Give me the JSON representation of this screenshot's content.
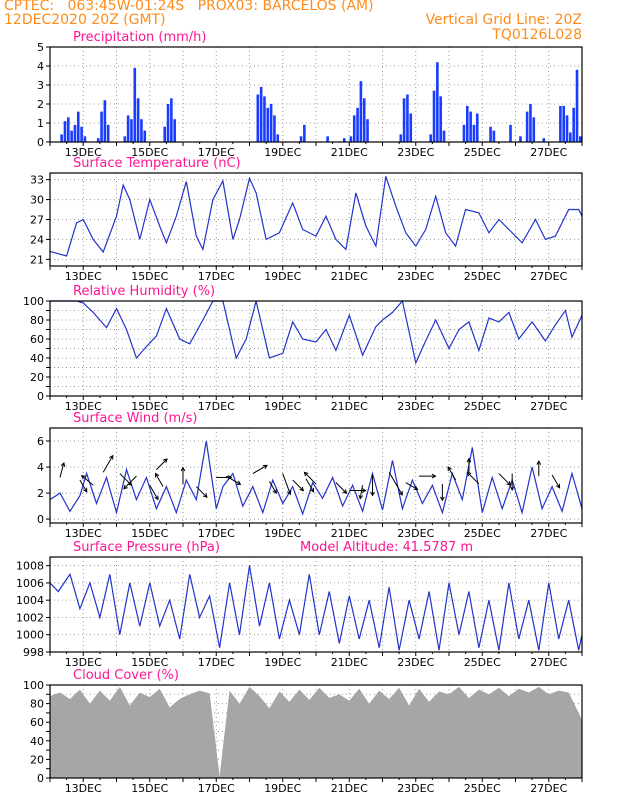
{
  "header": {
    "line1_left": "CPTEC:   063:45W-01:24S   PROX03: BARCELOS (AM)",
    "line2_left": "12DEC2020 20Z (GMT)",
    "line2_right": "Vertical Grid Line: 20Z",
    "line3_right": "TQ0126L028"
  },
  "colors": {
    "header": "#ff8c1a",
    "panel_title": "#ff1493",
    "series_line": "#2233cc",
    "precip_bar": "#1a3cff",
    "cloud_fill": "#a6a6a6",
    "axis": "#000000",
    "grid": "#9a9a9a"
  },
  "chart_data": [
    {
      "type": "bar",
      "title": "Precipitation (mm/h)",
      "x_tick_labels": [
        "13DEC",
        "15DEC",
        "17DEC",
        "19DEC",
        "21DEC",
        "23DEC",
        "25DEC",
        "27DEC"
      ],
      "ylim": [
        0,
        5
      ],
      "y_ticks": [
        0,
        1,
        2,
        3,
        4,
        5
      ],
      "grid": true,
      "bars": [
        [
          0.35,
          0.4
        ],
        [
          0.45,
          1.1
        ],
        [
          0.55,
          1.3
        ],
        [
          0.65,
          0.6
        ],
        [
          0.75,
          0.9
        ],
        [
          0.85,
          1.6
        ],
        [
          0.95,
          0.8
        ],
        [
          1.05,
          0.3
        ],
        [
          1.45,
          0.2
        ],
        [
          1.55,
          1.6
        ],
        [
          1.65,
          2.2
        ],
        [
          1.75,
          0.9
        ],
        [
          2.25,
          0.3
        ],
        [
          2.35,
          1.4
        ],
        [
          2.45,
          1.2
        ],
        [
          2.55,
          3.9
        ],
        [
          2.65,
          2.3
        ],
        [
          2.75,
          1.2
        ],
        [
          2.85,
          0.6
        ],
        [
          3.45,
          0.8
        ],
        [
          3.55,
          2.0
        ],
        [
          3.65,
          2.3
        ],
        [
          3.75,
          1.2
        ],
        [
          6.25,
          2.5
        ],
        [
          6.35,
          2.9
        ],
        [
          6.45,
          2.4
        ],
        [
          6.55,
          1.8
        ],
        [
          6.65,
          2.0
        ],
        [
          6.75,
          1.4
        ],
        [
          6.85,
          0.4
        ],
        [
          7.55,
          0.3
        ],
        [
          7.65,
          0.9
        ],
        [
          8.35,
          0.3
        ],
        [
          8.85,
          0.2
        ],
        [
          9.05,
          0.3
        ],
        [
          9.15,
          1.4
        ],
        [
          9.25,
          1.8
        ],
        [
          9.35,
          3.2
        ],
        [
          9.45,
          2.3
        ],
        [
          9.55,
          1.2
        ],
        [
          10.55,
          0.4
        ],
        [
          10.65,
          2.3
        ],
        [
          10.75,
          2.5
        ],
        [
          10.85,
          1.5
        ],
        [
          11.45,
          0.4
        ],
        [
          11.55,
          2.7
        ],
        [
          11.65,
          4.2
        ],
        [
          11.75,
          2.4
        ],
        [
          11.85,
          0.6
        ],
        [
          12.45,
          0.9
        ],
        [
          12.55,
          1.9
        ],
        [
          12.65,
          1.6
        ],
        [
          12.75,
          0.9
        ],
        [
          12.85,
          1.5
        ],
        [
          13.25,
          0.8
        ],
        [
          13.35,
          0.6
        ],
        [
          13.85,
          0.9
        ],
        [
          14.15,
          0.3
        ],
        [
          14.35,
          1.6
        ],
        [
          14.45,
          2.0
        ],
        [
          14.55,
          1.3
        ],
        [
          14.85,
          0.2
        ],
        [
          15.35,
          1.9
        ],
        [
          15.45,
          1.9
        ],
        [
          15.55,
          1.4
        ],
        [
          15.65,
          0.5
        ],
        [
          15.75,
          1.8
        ],
        [
          15.85,
          3.8
        ],
        [
          15.95,
          0.3
        ]
      ]
    },
    {
      "type": "line",
      "title": "Surface Temperature (nC)",
      "x_tick_labels": [
        "13DEC",
        "15DEC",
        "17DEC",
        "19DEC",
        "21DEC",
        "23DEC",
        "25DEC",
        "27DEC"
      ],
      "ylim": [
        20,
        34
      ],
      "y_ticks": [
        21,
        24,
        27,
        30,
        33
      ],
      "grid": true,
      "x": [
        0,
        0.5,
        0.8,
        1.0,
        1.3,
        1.6,
        2.0,
        2.2,
        2.4,
        2.7,
        3.0,
        3.3,
        3.5,
        3.8,
        4.1,
        4.4,
        4.6,
        4.9,
        5.2,
        5.5,
        5.7,
        6.0,
        6.2,
        6.5,
        6.9,
        7.3,
        7.6,
        8.0,
        8.3,
        8.6,
        8.9,
        9.2,
        9.5,
        9.8,
        10.1,
        10.4,
        10.7,
        11.0,
        11.3,
        11.6,
        11.9,
        12.2,
        12.5,
        12.9,
        13.2,
        13.5,
        13.8,
        14.2,
        14.6,
        14.9,
        15.2,
        15.6,
        15.9,
        16.0
      ],
      "y": [
        22.2,
        21.5,
        26.5,
        27.0,
        24.0,
        22.1,
        27.5,
        32.2,
        30.0,
        24.0,
        30.0,
        26.0,
        23.5,
        27.5,
        32.7,
        24.5,
        22.5,
        30.0,
        32.8,
        24.0,
        27.0,
        33.2,
        31.0,
        24.0,
        25.0,
        29.5,
        25.5,
        24.5,
        27.5,
        24.0,
        22.5,
        31.0,
        26.0,
        23.0,
        33.5,
        29.0,
        25.0,
        23.0,
        25.5,
        30.5,
        25.0,
        23.0,
        28.5,
        28.0,
        25.0,
        27.0,
        25.5,
        23.5,
        27.0,
        24.0,
        24.5,
        28.5,
        28.5,
        27.5
      ]
    },
    {
      "type": "line",
      "title": "Relative Humidity (%)",
      "x_tick_labels": [
        "13DEC",
        "15DEC",
        "17DEC",
        "19DEC",
        "21DEC",
        "23DEC",
        "25DEC",
        "27DEC"
      ],
      "ylim": [
        0,
        100
      ],
      "y_ticks": [
        0,
        10,
        20,
        30,
        40,
        50,
        60,
        70,
        80,
        90,
        100
      ],
      "y_tick_labels": [
        "0",
        "20",
        "40",
        "60",
        "80",
        "100"
      ],
      "grid": true,
      "x": [
        0,
        0.5,
        0.8,
        1.0,
        1.3,
        1.7,
        2.0,
        2.3,
        2.6,
        2.9,
        3.2,
        3.5,
        3.9,
        4.2,
        4.6,
        4.9,
        5.2,
        5.6,
        5.9,
        6.2,
        6.6,
        7.0,
        7.3,
        7.6,
        8.0,
        8.3,
        8.6,
        9.0,
        9.4,
        9.8,
        10.0,
        10.3,
        10.6,
        11.0,
        11.3,
        11.6,
        12.0,
        12.3,
        12.6,
        12.9,
        13.2,
        13.5,
        13.8,
        14.1,
        14.5,
        14.9,
        15.2,
        15.5,
        15.7,
        16.0
      ],
      "y": [
        100,
        100,
        100,
        98,
        88,
        72,
        92,
        70,
        40,
        52,
        63,
        92,
        60,
        55,
        80,
        100,
        100,
        40,
        60,
        100,
        40,
        45,
        78,
        60,
        57,
        70,
        48,
        85,
        43,
        73,
        80,
        88,
        100,
        35,
        58,
        80,
        50,
        70,
        78,
        48,
        82,
        78,
        88,
        60,
        78,
        58,
        75,
        90,
        62,
        85
      ]
    },
    {
      "type": "line",
      "title": "Surface Wind (m/s)",
      "x_tick_labels": [
        "13DEC",
        "15DEC",
        "17DEC",
        "19DEC",
        "21DEC",
        "23DEC",
        "25DEC",
        "27DEC"
      ],
      "ylim": [
        -0.3,
        7
      ],
      "y_ticks": [
        0,
        2,
        4,
        6
      ],
      "grid": true,
      "x": [
        0,
        0.3,
        0.6,
        0.9,
        1.1,
        1.4,
        1.7,
        2.0,
        2.3,
        2.6,
        2.9,
        3.2,
        3.5,
        3.8,
        4.1,
        4.4,
        4.7,
        5.0,
        5.2,
        5.5,
        5.8,
        6.1,
        6.4,
        6.7,
        7.0,
        7.3,
        7.6,
        7.9,
        8.2,
        8.5,
        8.8,
        9.1,
        9.4,
        9.7,
        10.0,
        10.3,
        10.6,
        10.9,
        11.2,
        11.5,
        11.8,
        12.1,
        12.4,
        12.7,
        13.0,
        13.3,
        13.6,
        13.9,
        14.2,
        14.5,
        14.8,
        15.1,
        15.4,
        15.7,
        16.0
      ],
      "y": [
        1.5,
        2.0,
        0.6,
        1.8,
        3.5,
        1.2,
        3.2,
        0.5,
        3.8,
        1.5,
        3.2,
        0.8,
        2.5,
        0.5,
        3.0,
        1.5,
        6.0,
        0.8,
        2.5,
        3.5,
        1.0,
        2.5,
        0.5,
        3.0,
        1.2,
        2.5,
        0.4,
        2.8,
        1.6,
        3.2,
        1.0,
        2.6,
        0.6,
        3.5,
        0.7,
        4.5,
        0.8,
        3.0,
        1.2,
        2.6,
        0.5,
        3.5,
        1.5,
        5.5,
        0.5,
        3.2,
        0.8,
        3.0,
        0.5,
        4.0,
        0.8,
        2.5,
        0.6,
        3.5,
        0.8
      ],
      "arrows": [
        [
          0.3,
          3.2,
          75,
          0.5
        ],
        [
          0.9,
          3.0,
          -60,
          0.4
        ],
        [
          1.3,
          2.6,
          140,
          0.5
        ],
        [
          1.6,
          3.6,
          60,
          0.8
        ],
        [
          2.1,
          3.5,
          -45,
          0.6
        ],
        [
          2.6,
          3.3,
          -135,
          0.7
        ],
        [
          3.0,
          2.6,
          -60,
          0.6
        ],
        [
          3.2,
          3.8,
          45,
          0.5
        ],
        [
          3.4,
          2.5,
          120,
          0.5
        ],
        [
          4.0,
          2.7,
          90,
          0.6
        ],
        [
          4.4,
          2.5,
          -45,
          0.5
        ],
        [
          5.0,
          3.2,
          0,
          0.5
        ],
        [
          5.3,
          3.3,
          -30,
          0.6
        ],
        [
          6.1,
          3.5,
          30,
          0.6
        ],
        [
          6.6,
          2.9,
          -60,
          0.4
        ],
        [
          7.0,
          3.5,
          -70,
          1.0
        ],
        [
          7.3,
          3.0,
          -45,
          0.5
        ],
        [
          7.7,
          3.1,
          -60,
          0.5
        ],
        [
          8.0,
          2.7,
          135,
          0.6
        ],
        [
          8.6,
          2.8,
          -45,
          0.5
        ],
        [
          9.0,
          2.2,
          0,
          0.6
        ],
        [
          9.4,
          2.6,
          -100,
          0.4
        ],
        [
          9.7,
          3.4,
          -90,
          0.9
        ],
        [
          10.2,
          3.6,
          -60,
          1.3
        ],
        [
          10.7,
          2.8,
          -30,
          0.4
        ],
        [
          11.1,
          3.3,
          0,
          0.6
        ],
        [
          11.8,
          2.7,
          -90,
          0.6
        ],
        [
          12.2,
          3.0,
          120,
          0.5
        ],
        [
          12.6,
          3.6,
          90,
          0.4
        ],
        [
          12.9,
          2.7,
          135,
          0.6
        ],
        [
          13.5,
          3.5,
          -45,
          0.6
        ],
        [
          13.9,
          3.5,
          -90,
          0.6
        ],
        [
          14.7,
          3.3,
          90,
          0.5
        ],
        [
          15.1,
          3.4,
          -60,
          0.5
        ]
      ]
    },
    {
      "type": "line",
      "title": "Surface Pressure (hPa)",
      "annotation": "Model Altitude: 41.5787 m",
      "x_tick_labels": [
        "13DEC",
        "15DEC",
        "17DEC",
        "19DEC",
        "21DEC",
        "23DEC",
        "25DEC",
        "27DEC"
      ],
      "ylim": [
        998,
        1009
      ],
      "y_ticks": [
        998,
        1000,
        1002,
        1004,
        1006,
        1008
      ],
      "grid": true,
      "x": [
        0,
        0.25,
        0.6,
        0.9,
        1.2,
        1.5,
        1.8,
        2.1,
        2.4,
        2.7,
        3.0,
        3.3,
        3.6,
        3.9,
        4.2,
        4.5,
        4.8,
        5.1,
        5.4,
        5.7,
        6.0,
        6.3,
        6.6,
        6.9,
        7.2,
        7.5,
        7.8,
        8.1,
        8.4,
        8.7,
        9.0,
        9.3,
        9.6,
        9.9,
        10.2,
        10.5,
        10.8,
        11.1,
        11.4,
        11.7,
        12.0,
        12.3,
        12.6,
        12.9,
        13.2,
        13.5,
        13.8,
        14.1,
        14.4,
        14.7,
        15.0,
        15.3,
        15.6,
        15.9,
        16.0
      ],
      "y": [
        1006,
        1005,
        1007,
        1003,
        1006,
        1002,
        1007,
        1000,
        1006,
        1001,
        1006,
        1001,
        1004,
        999.5,
        1007,
        1002,
        1004.5,
        998.5,
        1006,
        1000,
        1008,
        1001,
        1006,
        999.5,
        1004,
        1000,
        1007,
        1000,
        1005,
        999,
        1004.5,
        999.5,
        1004,
        998.5,
        1005.5,
        998.2,
        1004,
        999.5,
        1005,
        998.2,
        1006,
        1000,
        1005,
        998.5,
        1004,
        998.2,
        1006,
        999.5,
        1004,
        998.2,
        1006,
        999.5,
        1004,
        998.2,
        1000
      ]
    },
    {
      "type": "area",
      "title": "Cloud Cover (%)",
      "x_tick_labels": [
        "13DEC",
        "15DEC",
        "17DEC",
        "19DEC",
        "21DEC",
        "23DEC",
        "25DEC",
        "27DEC"
      ],
      "ylim": [
        0,
        100
      ],
      "y_ticks": [
        0,
        10,
        20,
        30,
        40,
        50,
        60,
        70,
        80,
        90,
        100
      ],
      "y_tick_labels": [
        "0",
        "20",
        "40",
        "60",
        "80",
        "100"
      ],
      "grid": true,
      "x": [
        0,
        0.3,
        0.6,
        0.9,
        1.2,
        1.5,
        1.8,
        2.1,
        2.4,
        2.7,
        3.0,
        3.3,
        3.6,
        3.9,
        4.2,
        4.5,
        4.8,
        5.1,
        5.4,
        5.7,
        6.0,
        6.3,
        6.6,
        6.9,
        7.2,
        7.5,
        7.8,
        8.1,
        8.4,
        8.7,
        9.0,
        9.3,
        9.6,
        9.9,
        10.2,
        10.5,
        10.8,
        11.1,
        11.4,
        11.7,
        12.0,
        12.3,
        12.6,
        12.9,
        13.2,
        13.5,
        13.8,
        14.1,
        14.4,
        14.7,
        15.0,
        15.3,
        15.6,
        15.9,
        16.0
      ],
      "y": [
        88,
        92,
        85,
        95,
        80,
        94,
        83,
        98,
        78,
        92,
        87,
        96,
        76,
        85,
        90,
        94,
        91,
        2,
        94,
        80,
        98,
        88,
        75,
        93,
        82,
        95,
        84,
        97,
        86,
        90,
        83,
        96,
        80,
        94,
        85,
        97,
        78,
        96,
        82,
        93,
        90,
        98,
        86,
        95,
        90,
        97,
        88,
        96,
        92,
        98,
        90,
        94,
        92,
        70,
        62
      ]
    }
  ]
}
